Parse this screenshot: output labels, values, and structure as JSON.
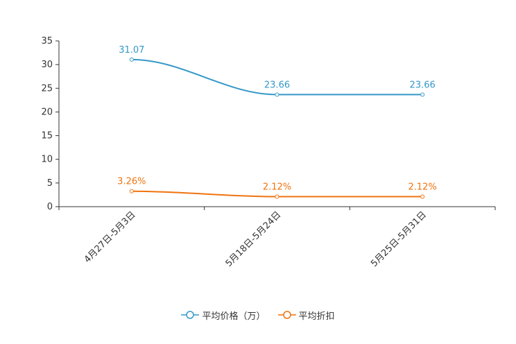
{
  "chart_data": {
    "type": "line",
    "categories": [
      "4月27日-5月3日",
      "5月18日-5月24日",
      "5月25日-5月31日"
    ],
    "ylim": [
      0,
      35
    ],
    "yticks": [
      0,
      5,
      10,
      15,
      20,
      25,
      30,
      35
    ],
    "grid": false,
    "legend_position": "bottom-center",
    "series": [
      {
        "name": "平均价格（万）",
        "values": [
          31.07,
          23.66,
          23.66
        ],
        "labels": [
          "31.07",
          "23.66",
          "23.66"
        ],
        "color": "#3398c8"
      },
      {
        "name": "平均折扣",
        "values": [
          3.26,
          2.12,
          2.12
        ],
        "labels": [
          "3.26%",
          "2.12%",
          "2.12%"
        ],
        "color": "#f0730f"
      }
    ]
  }
}
